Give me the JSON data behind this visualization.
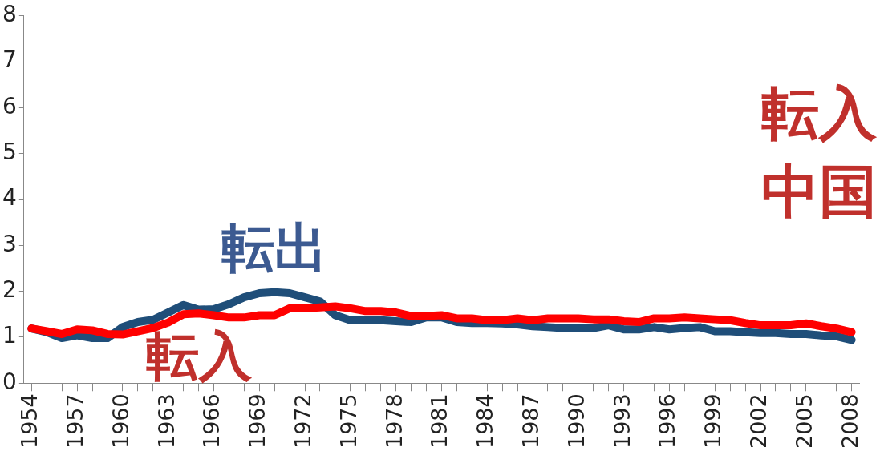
{
  "chart_data": {
    "type": "line",
    "title": "転入中国",
    "categories": [
      "1954",
      null,
      null,
      "1957",
      null,
      null,
      "1960",
      null,
      null,
      "1963",
      null,
      null,
      "1966",
      null,
      null,
      "1969",
      null,
      null,
      "1972",
      null,
      null,
      "1975",
      null,
      null,
      "1978",
      null,
      null,
      "1981",
      null,
      null,
      "1984",
      null,
      null,
      "1987",
      null,
      null,
      "1990",
      null,
      null,
      "1993",
      null,
      null,
      "1996",
      null,
      null,
      "1999",
      null,
      null,
      "2002",
      null,
      null,
      "2005",
      null,
      null,
      "2008"
    ],
    "series": [
      {
        "name": "転入",
        "color": "#ff0000",
        "values": [
          1.19,
          1.13,
          1.07,
          1.17,
          1.15,
          1.07,
          1.06,
          1.13,
          1.2,
          1.32,
          1.5,
          1.52,
          1.48,
          1.43,
          1.43,
          1.48,
          1.48,
          1.63,
          1.63,
          1.65,
          1.67,
          1.63,
          1.57,
          1.57,
          1.54,
          1.46,
          1.46,
          1.48,
          1.41,
          1.41,
          1.37,
          1.37,
          1.41,
          1.37,
          1.41,
          1.41,
          1.41,
          1.39,
          1.39,
          1.35,
          1.33,
          1.41,
          1.41,
          1.43,
          1.41,
          1.39,
          1.37,
          1.31,
          1.26,
          1.26,
          1.26,
          1.3,
          1.24,
          1.19,
          1.11
        ]
      },
      {
        "name": "転出",
        "color": "#1f4e79",
        "values": [
          1.19,
          1.11,
          0.98,
          1.04,
          0.98,
          0.98,
          1.22,
          1.33,
          1.38,
          1.54,
          1.7,
          1.6,
          1.61,
          1.72,
          1.87,
          1.96,
          1.98,
          1.96,
          1.87,
          1.78,
          1.48,
          1.37,
          1.37,
          1.37,
          1.35,
          1.33,
          1.43,
          1.43,
          1.33,
          1.31,
          1.31,
          1.3,
          1.28,
          1.24,
          1.22,
          1.2,
          1.19,
          1.2,
          1.26,
          1.17,
          1.17,
          1.22,
          1.17,
          1.2,
          1.22,
          1.13,
          1.13,
          1.11,
          1.09,
          1.09,
          1.07,
          1.07,
          1.04,
          1.02,
          0.94
        ]
      }
    ],
    "ylim": [
      0,
      8
    ],
    "yticks": [
      0,
      1,
      2,
      3,
      4,
      5,
      6,
      7,
      8
    ],
    "grid": false,
    "legend": false,
    "marker": "none",
    "line_style": "solid"
  }
}
